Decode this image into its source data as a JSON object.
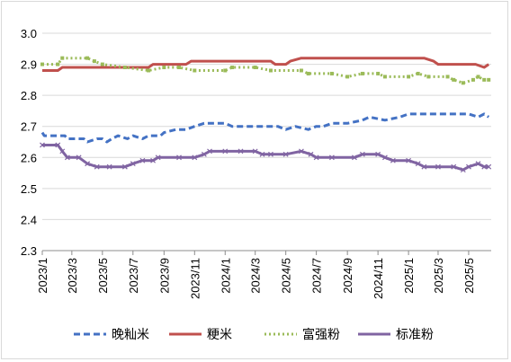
{
  "chart_data": {
    "type": "line",
    "title": "",
    "xlabel": "",
    "ylabel": "",
    "ylim": [
      2.3,
      3.0
    ],
    "yticks": [
      "3.0",
      "2.9",
      "2.8",
      "2.7",
      "2.6",
      "2.5",
      "2.4",
      "2.3"
    ],
    "xlim": [
      "2023-01-01",
      "2025-06-15"
    ],
    "xticks": [
      "2023/1",
      "2023/3",
      "2023/5",
      "2023/7",
      "2023/9",
      "2023/11",
      "2024/1",
      "2024/3",
      "2024/5",
      "2024/7",
      "2024/9",
      "2024/11",
      "2025/1",
      "2025/3",
      "2025/5"
    ],
    "grid": "horizontal",
    "legend": "bottom",
    "series": [
      {
        "name": "晚籼米",
        "color": "#4472c4",
        "points": [
          [
            "2023-01-01",
            2.68
          ],
          [
            "2023-01-05",
            2.67
          ],
          [
            "2023-02-15",
            2.67
          ],
          [
            "2023-02-20",
            2.66
          ],
          [
            "2023-03-25",
            2.66
          ],
          [
            "2023-04-01",
            2.65
          ],
          [
            "2023-04-20",
            2.66
          ],
          [
            "2023-05-01",
            2.66
          ],
          [
            "2023-05-10",
            2.65
          ],
          [
            "2023-05-20",
            2.66
          ],
          [
            "2023-06-01",
            2.67
          ],
          [
            "2023-06-20",
            2.66
          ],
          [
            "2023-07-01",
            2.67
          ],
          [
            "2023-07-20",
            2.66
          ],
          [
            "2023-08-01",
            2.67
          ],
          [
            "2023-08-25",
            2.67
          ],
          [
            "2023-09-01",
            2.68
          ],
          [
            "2023-09-25",
            2.69
          ],
          [
            "2023-10-15",
            2.69
          ],
          [
            "2023-11-01",
            2.7
          ],
          [
            "2023-11-20",
            2.71
          ],
          [
            "2024-01-01",
            2.71
          ],
          [
            "2024-01-15",
            2.7
          ],
          [
            "2024-03-01",
            2.7
          ],
          [
            "2024-04-15",
            2.7
          ],
          [
            "2024-05-01",
            2.69
          ],
          [
            "2024-05-20",
            2.7
          ],
          [
            "2024-06-15",
            2.69
          ],
          [
            "2024-07-01",
            2.7
          ],
          [
            "2024-07-15",
            2.7
          ],
          [
            "2024-08-01",
            2.71
          ],
          [
            "2024-09-01",
            2.71
          ],
          [
            "2024-10-01",
            2.72
          ],
          [
            "2024-10-15",
            2.73
          ],
          [
            "2024-11-15",
            2.72
          ],
          [
            "2024-12-15",
            2.73
          ],
          [
            "2025-01-01",
            2.74
          ],
          [
            "2025-01-15",
            2.74
          ],
          [
            "2025-03-01",
            2.74
          ],
          [
            "2025-05-01",
            2.74
          ],
          [
            "2025-05-20",
            2.73
          ],
          [
            "2025-06-01",
            2.74
          ],
          [
            "2025-06-10",
            2.73
          ]
        ]
      },
      {
        "name": "粳米",
        "color": "#c0504d",
        "points": [
          [
            "2023-01-01",
            2.88
          ],
          [
            "2023-02-01",
            2.88
          ],
          [
            "2023-02-10",
            2.89
          ],
          [
            "2023-05-01",
            2.89
          ],
          [
            "2023-06-01",
            2.89
          ],
          [
            "2023-07-01",
            2.89
          ],
          [
            "2023-08-01",
            2.89
          ],
          [
            "2023-08-10",
            2.9
          ],
          [
            "2023-10-15",
            2.9
          ],
          [
            "2023-10-25",
            2.91
          ],
          [
            "2024-03-01",
            2.91
          ],
          [
            "2024-04-01",
            2.91
          ],
          [
            "2024-04-10",
            2.9
          ],
          [
            "2024-05-01",
            2.9
          ],
          [
            "2024-05-10",
            2.91
          ],
          [
            "2024-06-01",
            2.92
          ],
          [
            "2024-08-01",
            2.92
          ],
          [
            "2024-09-01",
            2.92
          ],
          [
            "2024-10-01",
            2.92
          ],
          [
            "2024-12-01",
            2.92
          ],
          [
            "2025-01-01",
            2.92
          ],
          [
            "2025-02-01",
            2.92
          ],
          [
            "2025-02-20",
            2.91
          ],
          [
            "2025-03-01",
            2.9
          ],
          [
            "2025-05-15",
            2.9
          ],
          [
            "2025-06-01",
            2.89
          ],
          [
            "2025-06-10",
            2.9
          ]
        ]
      },
      {
        "name": "富强粉",
        "color": "#9bbb59",
        "points": [
          [
            "2023-01-01",
            2.9
          ],
          [
            "2023-02-01",
            2.9
          ],
          [
            "2023-02-10",
            2.92
          ],
          [
            "2023-04-01",
            2.92
          ],
          [
            "2023-04-15",
            2.91
          ],
          [
            "2023-05-01",
            2.9
          ],
          [
            "2023-06-15",
            2.89
          ],
          [
            "2023-08-01",
            2.88
          ],
          [
            "2023-09-01",
            2.89
          ],
          [
            "2023-10-01",
            2.89
          ],
          [
            "2023-11-01",
            2.88
          ],
          [
            "2024-01-01",
            2.88
          ],
          [
            "2024-01-15",
            2.89
          ],
          [
            "2024-03-01",
            2.89
          ],
          [
            "2024-04-01",
            2.88
          ],
          [
            "2024-06-01",
            2.88
          ],
          [
            "2024-06-15",
            2.87
          ],
          [
            "2024-08-01",
            2.87
          ],
          [
            "2024-09-01",
            2.86
          ],
          [
            "2024-10-01",
            2.87
          ],
          [
            "2024-11-01",
            2.87
          ],
          [
            "2024-11-15",
            2.86
          ],
          [
            "2025-01-01",
            2.86
          ],
          [
            "2025-01-20",
            2.87
          ],
          [
            "2025-02-10",
            2.86
          ],
          [
            "2025-03-20",
            2.86
          ],
          [
            "2025-04-01",
            2.85
          ],
          [
            "2025-04-20",
            2.84
          ],
          [
            "2025-05-10",
            2.85
          ],
          [
            "2025-05-20",
            2.86
          ],
          [
            "2025-06-01",
            2.85
          ],
          [
            "2025-06-10",
            2.85
          ]
        ]
      },
      {
        "name": "标准粉",
        "color": "#8064a2",
        "points": [
          [
            "2023-01-01",
            2.64
          ],
          [
            "2023-02-01",
            2.64
          ],
          [
            "2023-02-10",
            2.62
          ],
          [
            "2023-02-20",
            2.6
          ],
          [
            "2023-03-15",
            2.6
          ],
          [
            "2023-04-01",
            2.58
          ],
          [
            "2023-04-20",
            2.57
          ],
          [
            "2023-05-15",
            2.57
          ],
          [
            "2023-06-15",
            2.57
          ],
          [
            "2023-07-01",
            2.58
          ],
          [
            "2023-07-20",
            2.59
          ],
          [
            "2023-08-10",
            2.59
          ],
          [
            "2023-08-20",
            2.6
          ],
          [
            "2023-10-01",
            2.6
          ],
          [
            "2023-11-01",
            2.6
          ],
          [
            "2023-11-20",
            2.61
          ],
          [
            "2023-12-01",
            2.62
          ],
          [
            "2024-01-01",
            2.62
          ],
          [
            "2024-02-01",
            2.62
          ],
          [
            "2024-03-01",
            2.62
          ],
          [
            "2024-03-15",
            2.61
          ],
          [
            "2024-04-01",
            2.61
          ],
          [
            "2024-05-01",
            2.61
          ],
          [
            "2024-06-01",
            2.62
          ],
          [
            "2024-06-20",
            2.61
          ],
          [
            "2024-07-01",
            2.6
          ],
          [
            "2024-08-01",
            2.6
          ],
          [
            "2024-09-15",
            2.6
          ],
          [
            "2024-10-01",
            2.61
          ],
          [
            "2024-11-01",
            2.61
          ],
          [
            "2024-11-15",
            2.6
          ],
          [
            "2024-12-01",
            2.59
          ],
          [
            "2025-01-01",
            2.59
          ],
          [
            "2025-01-20",
            2.58
          ],
          [
            "2025-02-01",
            2.57
          ],
          [
            "2025-03-01",
            2.57
          ],
          [
            "2025-04-01",
            2.57
          ],
          [
            "2025-04-20",
            2.56
          ],
          [
            "2025-05-01",
            2.57
          ],
          [
            "2025-05-20",
            2.58
          ],
          [
            "2025-06-01",
            2.57
          ],
          [
            "2025-06-10",
            2.57
          ]
        ]
      }
    ]
  }
}
